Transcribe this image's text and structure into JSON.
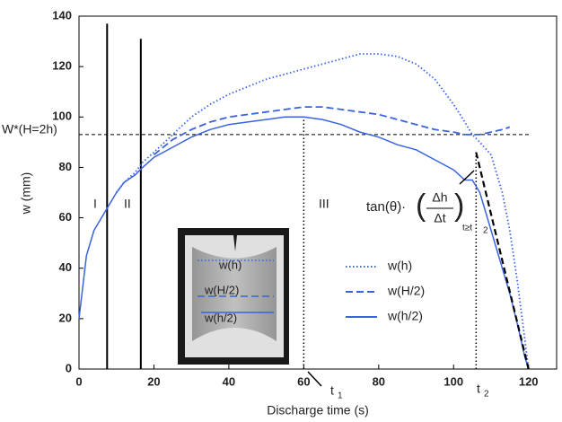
{
  "chart_data": {
    "type": "line",
    "x_label": "Discharge time (s)",
    "y_label": "w (mm)",
    "xlim": [
      0,
      127.5
    ],
    "ylim": [
      0,
      140
    ],
    "xticks": [
      0,
      20,
      40,
      60,
      80,
      100,
      120
    ],
    "yticks": [
      0,
      20,
      40,
      60,
      80,
      100,
      120,
      140
    ],
    "grid": false,
    "x": [
      0,
      2,
      4,
      6,
      8,
      10,
      12,
      15,
      17,
      20,
      25,
      30,
      35,
      40,
      45,
      50,
      55,
      60,
      65,
      70,
      75,
      80,
      85,
      90,
      95,
      100,
      103,
      105,
      107,
      110,
      113,
      115,
      117,
      119,
      120
    ],
    "series": [
      {
        "name": "w(h)",
        "color": "#3a63e0",
        "style": "dotted",
        "values": [
          null,
          null,
          null,
          null,
          null,
          70,
          74,
          78,
          82,
          86,
          93,
          100,
          105,
          109,
          112,
          115,
          117,
          119,
          121,
          123,
          125,
          125,
          124,
          121,
          115,
          105,
          98,
          93,
          90,
          85,
          70,
          55,
          35,
          12,
          0
        ]
      },
      {
        "name": "w(H/2)",
        "color": "#3a63e0",
        "style": "dashed",
        "values": [
          null,
          null,
          null,
          null,
          null,
          null,
          null,
          null,
          null,
          85,
          91,
          95,
          98,
          100,
          101,
          102,
          103,
          104,
          104,
          103,
          102,
          101,
          99,
          97,
          95,
          94,
          93,
          93,
          93,
          94,
          95,
          96,
          null,
          null,
          null
        ]
      },
      {
        "name": "w(h/2)",
        "color": "#3a63e0",
        "style": "solid",
        "values": [
          20,
          45,
          55,
          60,
          65,
          70,
          74,
          77,
          80,
          84,
          88,
          92,
          95,
          97,
          98,
          99,
          100,
          100,
          99,
          97,
          94,
          92,
          89,
          87,
          83,
          79,
          75,
          75,
          70,
          55,
          40,
          30,
          18,
          5,
          0
        ]
      }
    ],
    "reference_line": {
      "label": "W*(H=2h)",
      "value": 93
    },
    "vertical_lines": [
      {
        "x": 7.5,
        "top": 137,
        "style": "solid"
      },
      {
        "x": 16.5,
        "top": 131,
        "style": "solid"
      },
      {
        "x": 60,
        "top": 100,
        "style": "dotted"
      },
      {
        "x": 106,
        "top": 86,
        "style": "dotted"
      }
    ],
    "tangent": {
      "x": [
        106,
        120
      ],
      "y": [
        86,
        0
      ]
    },
    "region_labels": [
      "I",
      "II",
      "III"
    ],
    "time_labels": [
      "t",
      "1",
      "t",
      "2"
    ],
    "formula": [
      "tan(θ)·",
      "Δh",
      "Δt",
      "t≥t",
      "2"
    ],
    "inset_labels": [
      "w(h)",
      "w(H/2)",
      "w(h/2)"
    ]
  }
}
